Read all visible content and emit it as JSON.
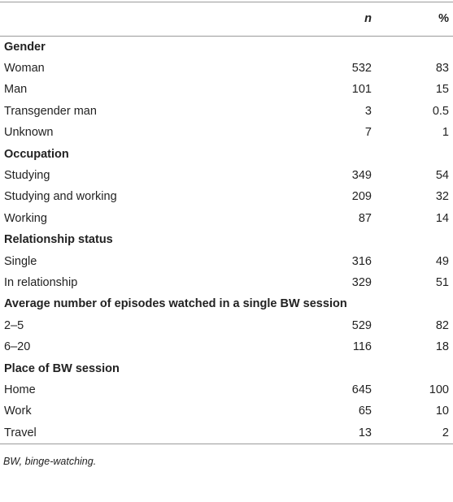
{
  "header": {
    "n": "n",
    "percent": "%"
  },
  "sections": [
    {
      "title": "Gender",
      "rows": [
        [
          "Woman",
          532,
          83
        ],
        [
          "Man",
          101,
          15
        ],
        [
          "Transgender man",
          3,
          0.5
        ],
        [
          "Unknown",
          7,
          1
        ]
      ]
    },
    {
      "title": "Occupation",
      "rows": [
        [
          "Studying",
          349,
          54
        ],
        [
          "Studying and working",
          209,
          32
        ],
        [
          "Working",
          87,
          14
        ]
      ]
    },
    {
      "title": "Relationship status",
      "rows": [
        [
          "Single",
          316,
          49
        ],
        [
          "In relationship",
          329,
          51
        ]
      ]
    },
    {
      "title": "Average number of episodes watched in a single BW session",
      "rows": [
        [
          "2–5",
          529,
          82
        ],
        [
          "6–20",
          116,
          18
        ]
      ]
    },
    {
      "title": "Place of BW session",
      "rows": [
        [
          "Home",
          645,
          100
        ],
        [
          "Work",
          65,
          10
        ],
        [
          "Travel",
          13,
          2
        ]
      ]
    }
  ],
  "footnote": "BW, binge-watching."
}
